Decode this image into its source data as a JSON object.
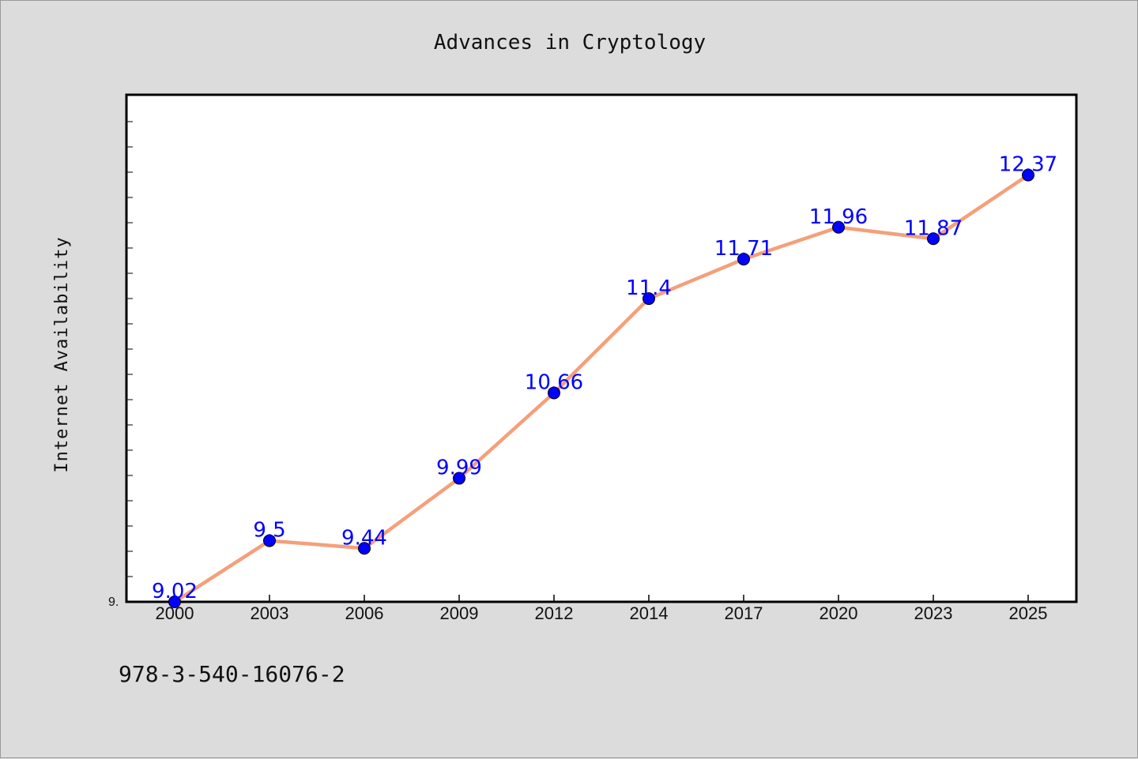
{
  "chart_data": {
    "type": "line",
    "title": "Advances in Cryptology",
    "xlabel": "",
    "ylabel": "Internet Availability",
    "categories": [
      "2000",
      "2003",
      "2006",
      "2009",
      "2012",
      "2014",
      "2017",
      "2020",
      "2023",
      "2025"
    ],
    "series": [
      {
        "values": [
          9.02,
          9.5,
          9.44,
          9.99,
          10.66,
          11.4,
          11.71,
          11.96,
          11.87,
          12.37
        ],
        "labels": [
          "9.02",
          "9.5",
          "9.44",
          "9.99",
          "10.66",
          "11.4",
          "11.71",
          "11.96",
          "11.87",
          "12.37"
        ],
        "line_color": "#f4a07a",
        "marker_color": "#0000ff"
      }
    ],
    "y_tick_labels": [
      "9."
    ],
    "ylim": [
      9.02,
      13.0
    ],
    "grid": false,
    "legend": "none"
  },
  "footer": {
    "isbn": "978-3-540-16076-2"
  },
  "colors": {
    "background": "#dcdcdc",
    "plot_background": "#ffffff",
    "axis": "#000000",
    "label": "#0000ff"
  }
}
